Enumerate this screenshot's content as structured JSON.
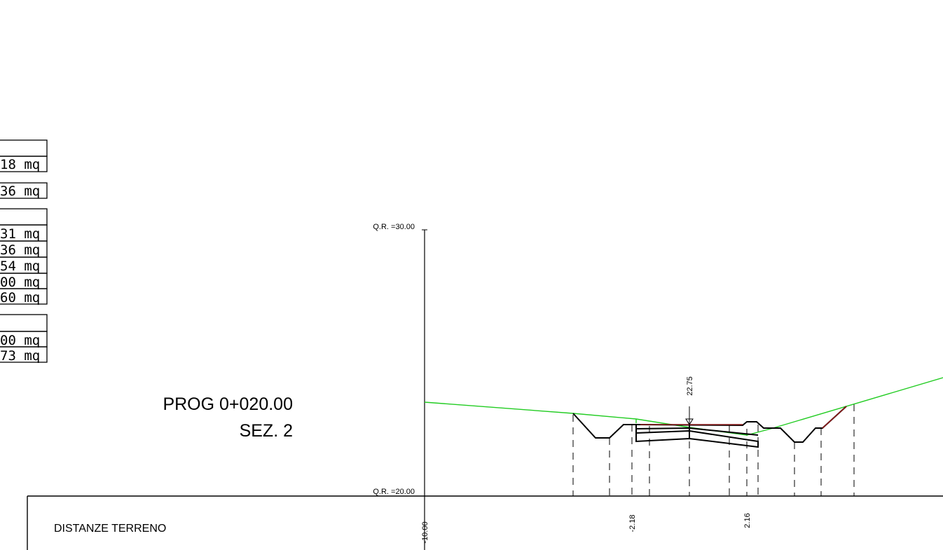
{
  "area_table": {
    "groups": [
      {
        "rows": [
          "",
          "18 mq"
        ]
      },
      {
        "rows": [
          "36 mq"
        ]
      },
      {
        "rows": [
          "",
          "31 mq",
          "36 mq",
          "54 mq",
          "00 mq",
          "60 mq"
        ]
      },
      {
        "rows": [
          "",
          "00 mq",
          "73 mq"
        ]
      }
    ]
  },
  "section": {
    "prog": "PROG 0+020.00",
    "name": "SEZ. 2"
  },
  "axis": {
    "qr_top": "Q.R.  =30.00",
    "qr_bottom": "Q.R.  =20.00",
    "axis_label": "22.75"
  },
  "table": {
    "row_label": "DISTANZE TERRENO",
    "distances": [
      "-10.00",
      "-2.18",
      "2.16"
    ]
  },
  "colors": {
    "ground": "#22cc22",
    "structure": "#000000",
    "slope": "#8b1a1a"
  }
}
